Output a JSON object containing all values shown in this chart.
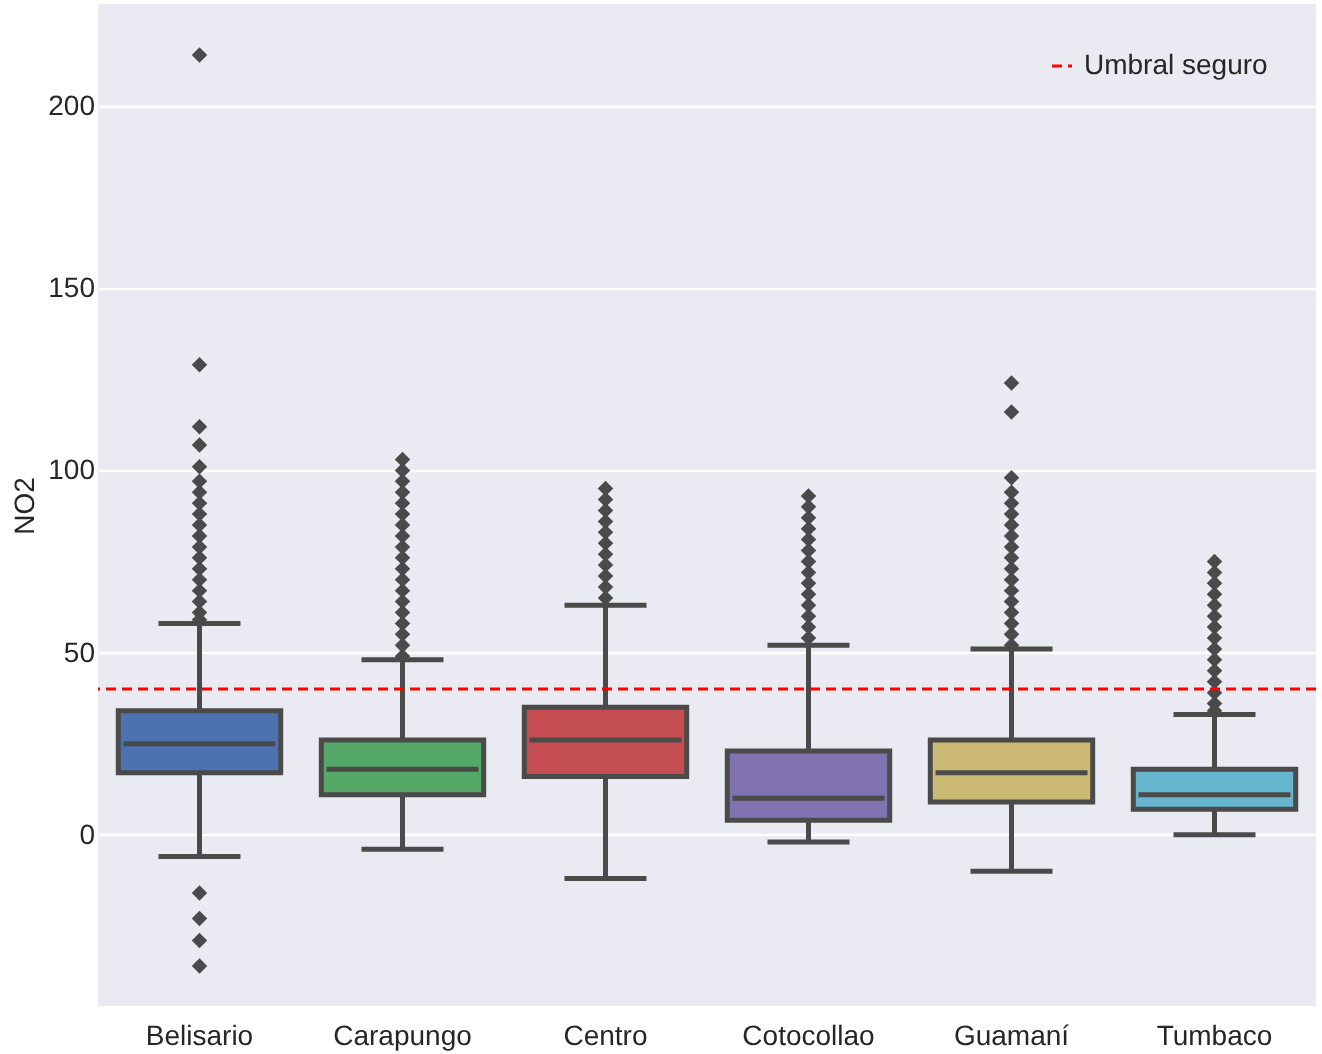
{
  "chart_data": {
    "type": "box",
    "ylabel": "NO2",
    "categories": [
      "Belisario",
      "Carapungo",
      "Centro",
      "Cotocollao",
      "Guamaní",
      "Tumbaco"
    ],
    "colors": [
      "#4c72b0",
      "#55a868",
      "#c44e52",
      "#8172b2",
      "#ccb974",
      "#64b5cd"
    ],
    "boxes": [
      {
        "low": -6,
        "q1": 17,
        "median": 25,
        "q3": 34,
        "high": 58,
        "outliers": [
          214,
          129,
          112,
          107,
          101,
          97,
          94,
          91,
          88,
          85,
          82,
          79,
          76,
          73,
          70,
          67,
          64,
          61,
          59,
          -16,
          -23,
          -29,
          -36
        ]
      },
      {
        "low": -4,
        "q1": 11,
        "median": 18,
        "q3": 26,
        "high": 48,
        "outliers": [
          103,
          100,
          97,
          94,
          91,
          88,
          85,
          82,
          79,
          76,
          73,
          70,
          67,
          64,
          61,
          58,
          55,
          52,
          49
        ]
      },
      {
        "low": -12,
        "q1": 16,
        "median": 26,
        "q3": 35,
        "high": 63,
        "outliers": [
          95,
          92,
          89,
          86,
          83,
          80,
          77,
          74,
          71,
          68,
          65
        ]
      },
      {
        "low": -2,
        "q1": 4,
        "median": 10,
        "q3": 23,
        "high": 52,
        "outliers": [
          93,
          90,
          87,
          84,
          81,
          78,
          75,
          72,
          69,
          66,
          63,
          60,
          57,
          54
        ]
      },
      {
        "low": -10,
        "q1": 9,
        "median": 17,
        "q3": 26,
        "high": 51,
        "outliers": [
          124,
          116,
          98,
          94,
          91,
          88,
          85,
          82,
          79,
          76,
          73,
          70,
          67,
          64,
          61,
          58,
          55,
          52
        ]
      },
      {
        "low": 0,
        "q1": 7,
        "median": 11,
        "q3": 18,
        "high": 33,
        "outliers": [
          75,
          72,
          69,
          66,
          63,
          60,
          57,
          54,
          51,
          48,
          45,
          42,
          39,
          36,
          34
        ]
      }
    ],
    "ylim": [
      -47,
      228
    ],
    "yticks": [
      0,
      50,
      100,
      150,
      200
    ],
    "grid": "y",
    "legend": "top right",
    "marker": "diamond",
    "ref_lines": [
      {
        "axis": "y",
        "value": 40,
        "label": "Umbral seguro",
        "color": "#ff0000",
        "line_style": "dashed"
      }
    ]
  }
}
